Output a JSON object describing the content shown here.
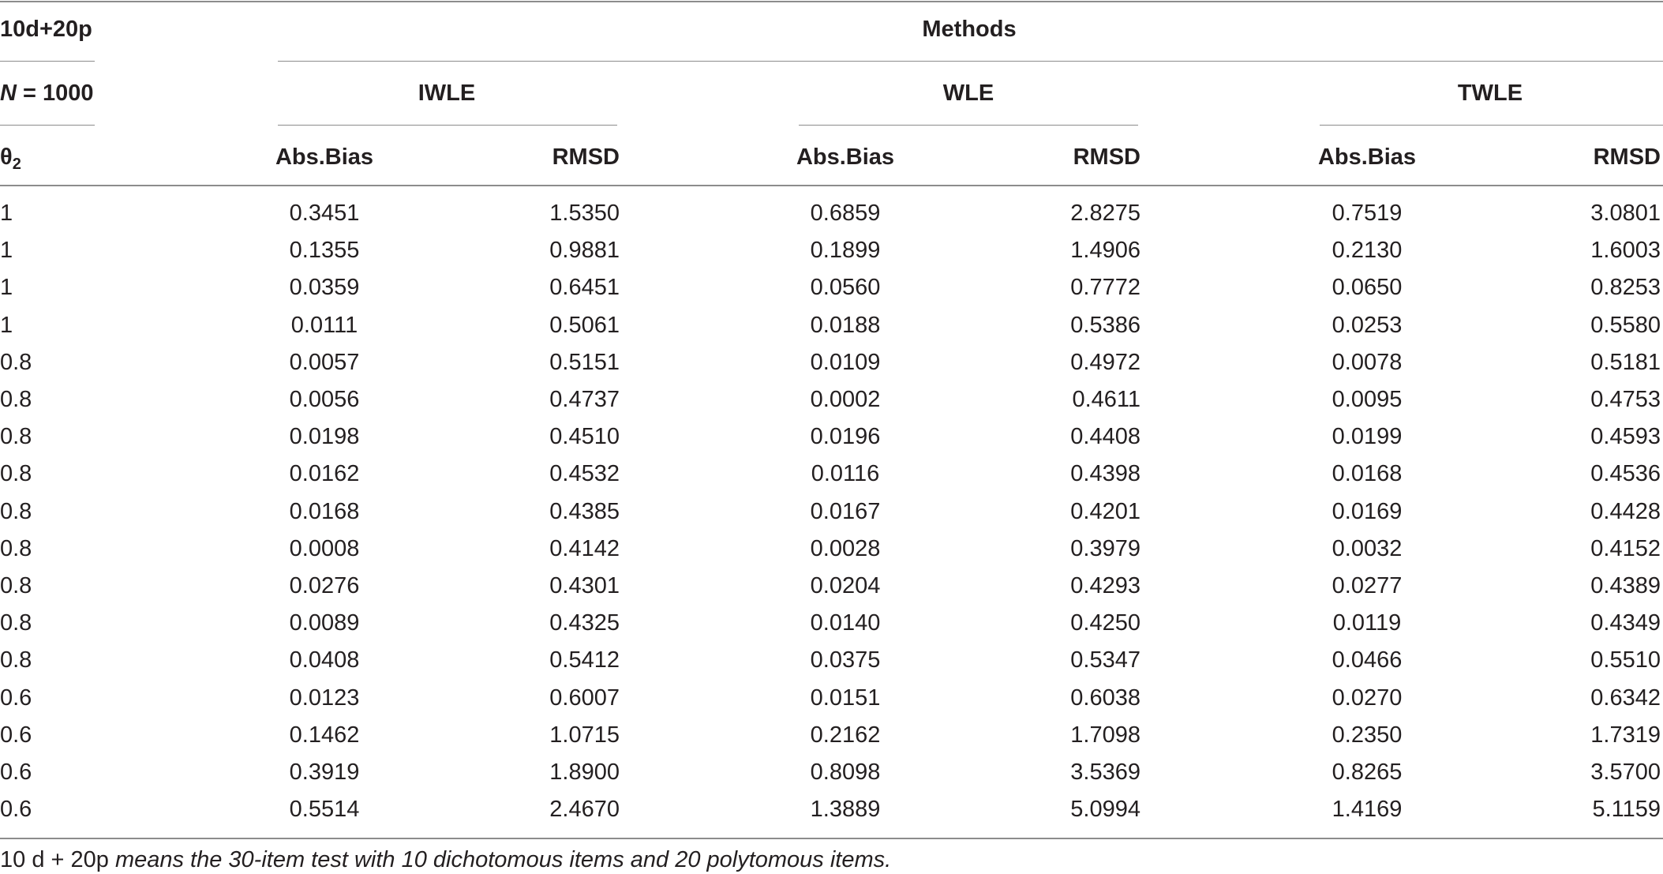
{
  "header": {
    "design": "10d+20p",
    "sample_prefix": "N",
    "sample_suffix": " = 1000",
    "theta_symbol": "θ",
    "theta_subscript": "2",
    "methods_label": "Methods",
    "method_groups": [
      "IWLE",
      "WLE",
      "TWLE"
    ],
    "col_abs_bias": "Abs.Bias",
    "col_rmsd": "RMSD"
  },
  "rows": [
    {
      "theta": "1",
      "iwle_bias": "0.3451",
      "iwle_rmsd": "1.5350",
      "wle_bias": "0.6859",
      "wle_rmsd": "2.8275",
      "twle_bias": "0.7519",
      "twle_rmsd": "3.0801"
    },
    {
      "theta": "1",
      "iwle_bias": "0.1355",
      "iwle_rmsd": "0.9881",
      "wle_bias": "0.1899",
      "wle_rmsd": "1.4906",
      "twle_bias": "0.2130",
      "twle_rmsd": "1.6003"
    },
    {
      "theta": "1",
      "iwle_bias": "0.0359",
      "iwle_rmsd": "0.6451",
      "wle_bias": "0.0560",
      "wle_rmsd": "0.7772",
      "twle_bias": "0.0650",
      "twle_rmsd": "0.8253"
    },
    {
      "theta": "1",
      "iwle_bias": "0.0111",
      "iwle_rmsd": "0.5061",
      "wle_bias": "0.0188",
      "wle_rmsd": "0.5386",
      "twle_bias": "0.0253",
      "twle_rmsd": "0.5580"
    },
    {
      "theta": "0.8",
      "iwle_bias": "0.0057",
      "iwle_rmsd": "0.5151",
      "wle_bias": "0.0109",
      "wle_rmsd": "0.4972",
      "twle_bias": "0.0078",
      "twle_rmsd": "0.5181"
    },
    {
      "theta": "0.8",
      "iwle_bias": "0.0056",
      "iwle_rmsd": "0.4737",
      "wle_bias": "0.0002",
      "wle_rmsd": "0.4611",
      "twle_bias": "0.0095",
      "twle_rmsd": "0.4753"
    },
    {
      "theta": "0.8",
      "iwle_bias": "0.0198",
      "iwle_rmsd": "0.4510",
      "wle_bias": "0.0196",
      "wle_rmsd": "0.4408",
      "twle_bias": "0.0199",
      "twle_rmsd": "0.4593"
    },
    {
      "theta": "0.8",
      "iwle_bias": "0.0162",
      "iwle_rmsd": "0.4532",
      "wle_bias": "0.0116",
      "wle_rmsd": "0.4398",
      "twle_bias": "0.0168",
      "twle_rmsd": "0.4536"
    },
    {
      "theta": "0.8",
      "iwle_bias": "0.0168",
      "iwle_rmsd": "0.4385",
      "wle_bias": "0.0167",
      "wle_rmsd": "0.4201",
      "twle_bias": "0.0169",
      "twle_rmsd": "0.4428"
    },
    {
      "theta": "0.8",
      "iwle_bias": "0.0008",
      "iwle_rmsd": "0.4142",
      "wle_bias": "0.0028",
      "wle_rmsd": "0.3979",
      "twle_bias": "0.0032",
      "twle_rmsd": "0.4152"
    },
    {
      "theta": "0.8",
      "iwle_bias": "0.0276",
      "iwle_rmsd": "0.4301",
      "wle_bias": "0.0204",
      "wle_rmsd": "0.4293",
      "twle_bias": "0.0277",
      "twle_rmsd": "0.4389"
    },
    {
      "theta": "0.8",
      "iwle_bias": "0.0089",
      "iwle_rmsd": "0.4325",
      "wle_bias": "0.0140",
      "wle_rmsd": "0.4250",
      "twle_bias": "0.0119",
      "twle_rmsd": "0.4349"
    },
    {
      "theta": "0.8",
      "iwle_bias": "0.0408",
      "iwle_rmsd": "0.5412",
      "wle_bias": "0.0375",
      "wle_rmsd": "0.5347",
      "twle_bias": "0.0466",
      "twle_rmsd": "0.5510"
    },
    {
      "theta": "0.6",
      "iwle_bias": "0.0123",
      "iwle_rmsd": "0.6007",
      "wle_bias": "0.0151",
      "wle_rmsd": "0.6038",
      "twle_bias": "0.0270",
      "twle_rmsd": "0.6342"
    },
    {
      "theta": "0.6",
      "iwle_bias": "0.1462",
      "iwle_rmsd": "1.0715",
      "wle_bias": "0.2162",
      "wle_rmsd": "1.7098",
      "twle_bias": "0.2350",
      "twle_rmsd": "1.7319"
    },
    {
      "theta": "0.6",
      "iwle_bias": "0.3919",
      "iwle_rmsd": "1.8900",
      "wle_bias": "0.8098",
      "wle_rmsd": "3.5369",
      "twle_bias": "0.8265",
      "twle_rmsd": "3.5700"
    },
    {
      "theta": "0.6",
      "iwle_bias": "0.5514",
      "iwle_rmsd": "2.4670",
      "wle_bias": "1.3889",
      "wle_rmsd": "5.0994",
      "twle_bias": "1.4169",
      "twle_rmsd": "5.1159"
    }
  ],
  "footnote": {
    "lead": "10 d + 20p",
    "rest": " means the 30-item test with 10 dichotomous items and 20 polytomous items."
  }
}
